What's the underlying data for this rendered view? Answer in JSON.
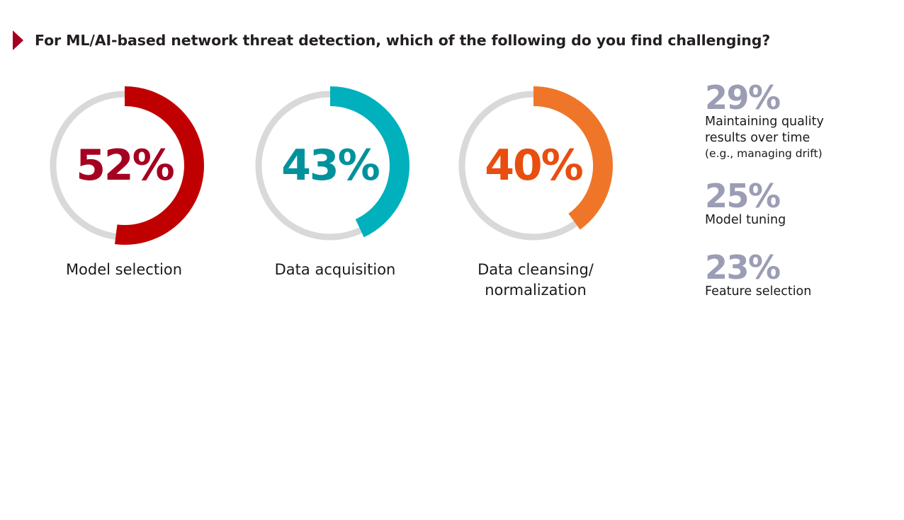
{
  "header": {
    "title": "For ML/AI-based network threat detection, which of the following do you find challenging?",
    "accent_color": "#a50021"
  },
  "chart_data": {
    "type": "donut",
    "track_color": "#d9d9d9",
    "title": "For ML/AI-based network threat detection, which of the following do you find challenging?",
    "donuts": [
      {
        "label": "Model selection",
        "value": 52,
        "display": "52%",
        "ring_color": "#c00000",
        "text_color": "#a50021"
      },
      {
        "label": "Data acquisition",
        "value": 43,
        "display": "43%",
        "ring_color": "#00b0bd",
        "text_color": "#00929c"
      },
      {
        "label_line1": "Data cleansing/",
        "label_line2": "normalization",
        "value": 40,
        "display": "40%",
        "ring_color": "#ef7628",
        "text_color": "#e84e0f"
      }
    ],
    "stats": [
      {
        "value": 29,
        "display": "29%",
        "label_line1": "Maintaining quality",
        "label_line2": "results over time",
        "sublabel": "(e.g., managing drift)"
      },
      {
        "value": 25,
        "display": "25%",
        "label_line1": "Model tuning"
      },
      {
        "value": 23,
        "display": "23%",
        "label_line1": "Feature selection"
      }
    ],
    "stat_color": "#9b9db5"
  }
}
